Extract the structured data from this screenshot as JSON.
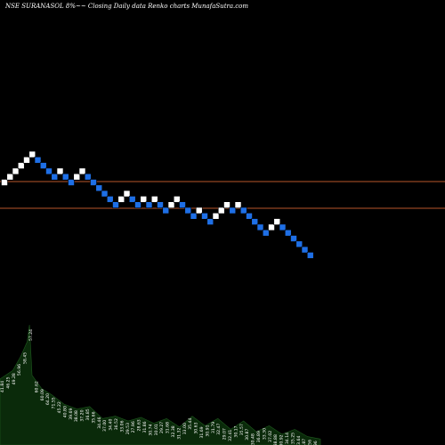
{
  "chart_data": {
    "type": "renko",
    "title": "NSE SURANASOL 8%~~ Closing Daily data  Renko  charts MunafaSutra.com",
    "brick_colors": {
      "up": "#ffffff",
      "down": "#1e6fe6"
    },
    "reference_line_color": "#b8562a",
    "volume_fill": "#0a2a0a",
    "bricks": [
      {
        "i": 0,
        "lvl": 0,
        "dir": "up"
      },
      {
        "i": 1,
        "lvl": 1,
        "dir": "up"
      },
      {
        "i": 2,
        "lvl": 2,
        "dir": "up"
      },
      {
        "i": 3,
        "lvl": 3,
        "dir": "up"
      },
      {
        "i": 4,
        "lvl": 4,
        "dir": "up"
      },
      {
        "i": 5,
        "lvl": 5,
        "dir": "up"
      },
      {
        "i": 6,
        "lvl": 4,
        "dir": "down"
      },
      {
        "i": 7,
        "lvl": 3,
        "dir": "down"
      },
      {
        "i": 8,
        "lvl": 2,
        "dir": "down"
      },
      {
        "i": 9,
        "lvl": 1,
        "dir": "down"
      },
      {
        "i": 10,
        "lvl": 2,
        "dir": "up"
      },
      {
        "i": 11,
        "lvl": 1,
        "dir": "down"
      },
      {
        "i": 12,
        "lvl": 0,
        "dir": "down"
      },
      {
        "i": 13,
        "lvl": 1,
        "dir": "up"
      },
      {
        "i": 14,
        "lvl": 2,
        "dir": "up"
      },
      {
        "i": 15,
        "lvl": 1,
        "dir": "down"
      },
      {
        "i": 16,
        "lvl": 0,
        "dir": "down"
      },
      {
        "i": 17,
        "lvl": -1,
        "dir": "down"
      },
      {
        "i": 18,
        "lvl": -2,
        "dir": "down"
      },
      {
        "i": 19,
        "lvl": -3,
        "dir": "down"
      },
      {
        "i": 20,
        "lvl": -4,
        "dir": "down"
      },
      {
        "i": 21,
        "lvl": -3,
        "dir": "up"
      },
      {
        "i": 22,
        "lvl": -2,
        "dir": "up"
      },
      {
        "i": 23,
        "lvl": -3,
        "dir": "down"
      },
      {
        "i": 24,
        "lvl": -4,
        "dir": "down"
      },
      {
        "i": 25,
        "lvl": -3,
        "dir": "up"
      },
      {
        "i": 26,
        "lvl": -4,
        "dir": "down"
      },
      {
        "i": 27,
        "lvl": -3,
        "dir": "up"
      },
      {
        "i": 28,
        "lvl": -4,
        "dir": "down"
      },
      {
        "i": 29,
        "lvl": -5,
        "dir": "down"
      },
      {
        "i": 30,
        "lvl": -4,
        "dir": "up"
      },
      {
        "i": 31,
        "lvl": -3,
        "dir": "up"
      },
      {
        "i": 32,
        "lvl": -4,
        "dir": "down"
      },
      {
        "i": 33,
        "lvl": -5,
        "dir": "down"
      },
      {
        "i": 34,
        "lvl": -6,
        "dir": "down"
      },
      {
        "i": 35,
        "lvl": -5,
        "dir": "up"
      },
      {
        "i": 36,
        "lvl": -6,
        "dir": "down"
      },
      {
        "i": 37,
        "lvl": -7,
        "dir": "down"
      },
      {
        "i": 38,
        "lvl": -6,
        "dir": "up"
      },
      {
        "i": 39,
        "lvl": -5,
        "dir": "up"
      },
      {
        "i": 40,
        "lvl": -4,
        "dir": "up"
      },
      {
        "i": 41,
        "lvl": -5,
        "dir": "down"
      },
      {
        "i": 42,
        "lvl": -4,
        "dir": "up"
      },
      {
        "i": 43,
        "lvl": -5,
        "dir": "down"
      },
      {
        "i": 44,
        "lvl": -6,
        "dir": "down"
      },
      {
        "i": 45,
        "lvl": -7,
        "dir": "down"
      },
      {
        "i": 46,
        "lvl": -8,
        "dir": "down"
      },
      {
        "i": 47,
        "lvl": -9,
        "dir": "down"
      },
      {
        "i": 48,
        "lvl": -8,
        "dir": "up"
      },
      {
        "i": 49,
        "lvl": -7,
        "dir": "up"
      },
      {
        "i": 50,
        "lvl": -8,
        "dir": "down"
      },
      {
        "i": 51,
        "lvl": -9,
        "dir": "down"
      },
      {
        "i": 52,
        "lvl": -10,
        "dir": "down"
      },
      {
        "i": 53,
        "lvl": -11,
        "dir": "down"
      },
      {
        "i": 54,
        "lvl": -12,
        "dir": "down"
      },
      {
        "i": 55,
        "lvl": -13,
        "dir": "down"
      }
    ],
    "volume_labels": [
      "41.84",
      "46.25",
      "49.28",
      "56.96",
      "58.45",
      "57.24",
      "60.62",
      "60.09",
      "64.20",
      "71.55",
      "45.22",
      "40.80",
      "39.69",
      "38.08",
      "37.20",
      "36.85",
      "35.66",
      "34.46",
      "37.00",
      "34.40",
      "36.52",
      "33.06",
      "29.53",
      "27.96",
      "28.63",
      "31.86",
      "30.74",
      "30.01",
      "29.27",
      "31.68",
      "32.38",
      "31.32",
      "33.00",
      "35.44",
      "30.63",
      "31.69",
      "30.91",
      "31.79",
      "32.47",
      "29.07",
      "32.41",
      "30.17",
      "35.57",
      "30.87",
      "30.48",
      "36.89",
      "33.30",
      "37.02",
      "38.88",
      "30.92",
      "34.14",
      "35.25",
      "33.64",
      "32.87",
      "30.56",
      "27.96"
    ],
    "volume_profile": [
      {
        "t": 0,
        "v": 0.55
      },
      {
        "t": 0.04,
        "v": 0.62
      },
      {
        "t": 0.065,
        "v": 0.74
      },
      {
        "t": 0.085,
        "v": 0.86
      },
      {
        "t": 0.092,
        "v": 1.0
      },
      {
        "t": 0.1,
        "v": 0.58
      },
      {
        "t": 0.13,
        "v": 0.47
      },
      {
        "t": 0.16,
        "v": 0.42
      },
      {
        "t": 0.2,
        "v": 0.34
      },
      {
        "t": 0.24,
        "v": 0.3
      },
      {
        "t": 0.28,
        "v": 0.32
      },
      {
        "t": 0.32,
        "v": 0.22
      },
      {
        "t": 0.36,
        "v": 0.24
      },
      {
        "t": 0.4,
        "v": 0.2
      },
      {
        "t": 0.44,
        "v": 0.23
      },
      {
        "t": 0.48,
        "v": 0.18
      },
      {
        "t": 0.52,
        "v": 0.22
      },
      {
        "t": 0.56,
        "v": 0.15
      },
      {
        "t": 0.6,
        "v": 0.24
      },
      {
        "t": 0.64,
        "v": 0.16
      },
      {
        "t": 0.68,
        "v": 0.22
      },
      {
        "t": 0.72,
        "v": 0.13
      },
      {
        "t": 0.76,
        "v": 0.2
      },
      {
        "t": 0.8,
        "v": 0.11
      },
      {
        "t": 0.84,
        "v": 0.16
      },
      {
        "t": 0.88,
        "v": 0.09
      },
      {
        "t": 0.92,
        "v": 0.13
      },
      {
        "t": 0.96,
        "v": 0.07
      },
      {
        "t": 1.0,
        "v": 0.05
      }
    ]
  }
}
